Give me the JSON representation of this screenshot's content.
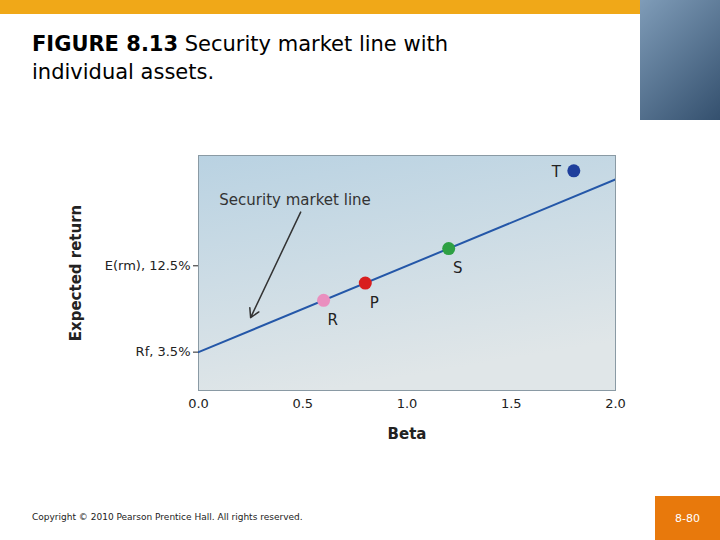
{
  "chart_data": {
    "type": "scatter",
    "title": "FIGURE 8.13",
    "subtitle": "Security market line with individual assets.",
    "xlabel": "Beta",
    "ylabel": "Expected return",
    "xlim": [
      0,
      2
    ],
    "ylim": [
      -0.5,
      24
    ],
    "xticks": [
      {
        "value": 0,
        "label": "0.0"
      },
      {
        "value": 0.5,
        "label": "0.5"
      },
      {
        "value": 1,
        "label": "1.0"
      },
      {
        "value": 1.5,
        "label": "1.5"
      },
      {
        "value": 2,
        "label": "2.0"
      }
    ],
    "yticks": [
      {
        "value": 3.5,
        "label": "Rf, 3.5%"
      },
      {
        "value": 12.5,
        "label": "E(rm), 12.5%"
      }
    ],
    "grid": false,
    "series": [
      {
        "name": "Security market line",
        "type": "line",
        "color": "#2457a8",
        "x": [
          0,
          2
        ],
        "values": [
          3.5,
          21.5
        ]
      },
      {
        "name": "R",
        "type": "scatter",
        "color": "#ea8fbf",
        "x": [
          0.6
        ],
        "values": [
          8.9
        ]
      },
      {
        "name": "P",
        "type": "scatter",
        "color": "#d81e1e",
        "x": [
          0.8
        ],
        "values": [
          10.7
        ]
      },
      {
        "name": "S",
        "type": "scatter",
        "color": "#2ea043",
        "x": [
          1.2
        ],
        "values": [
          14.3
        ]
      },
      {
        "name": "T",
        "type": "scatter",
        "color": "#1f3f9c",
        "x": [
          1.8
        ],
        "values": [
          22.4
        ]
      }
    ],
    "footer": "Copyright © 2010 Pearson Prentice Hall. All rights reserved.",
    "page": "8-80"
  }
}
